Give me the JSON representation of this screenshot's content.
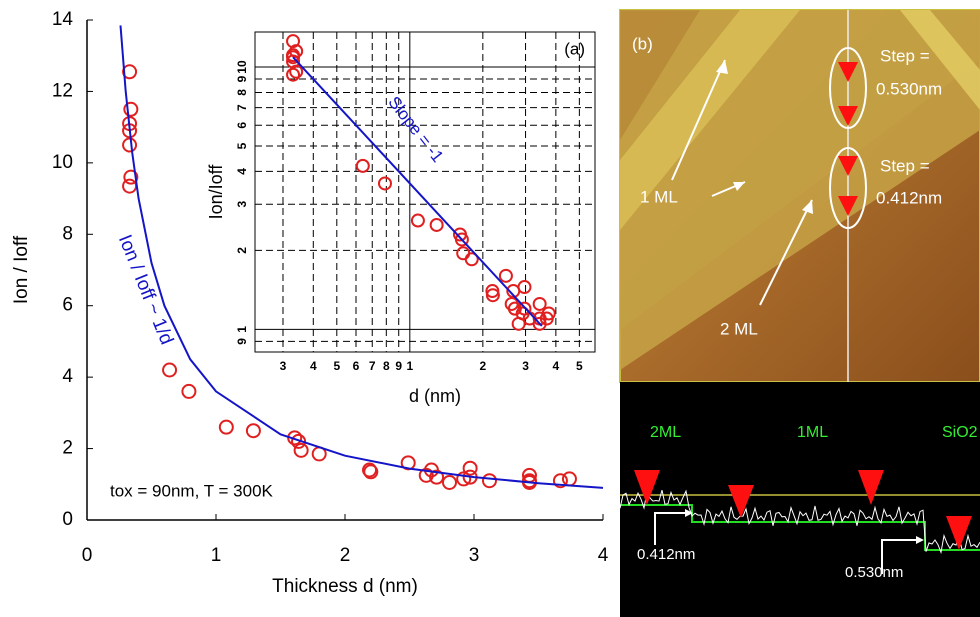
{
  "chart_data": [
    {
      "type": "scatter",
      "x_label": "Thickness d (nm)",
      "y_label": "Ion / Ioff",
      "annotations": [
        "tox = 90nm, T = 300K",
        "Ion / Ioff ~ 1/d"
      ],
      "xlim": [
        0,
        4
      ],
      "xticks": [
        0,
        1,
        2,
        3,
        4
      ],
      "ylim": [
        0,
        14
      ],
      "yticks": [
        0,
        2,
        4,
        6,
        8,
        10,
        12,
        14
      ],
      "series": [
        {
          "type": "scatter",
          "color": "#e02020",
          "x": [
            0.33,
            0.34,
            0.33,
            0.33,
            0.33,
            0.34,
            0.33,
            0.64,
            0.79,
            1.08,
            1.29,
            1.61,
            1.64,
            1.66,
            1.8,
            2.19,
            2.2,
            2.49,
            2.63,
            2.67,
            2.71,
            2.81,
            2.92,
            2.97,
            2.97,
            3.12,
            3.43,
            3.43,
            3.43,
            3.67,
            3.74
          ],
          "values": [
            12.55,
            11.5,
            11.1,
            10.9,
            10.5,
            9.6,
            9.35,
            4.2,
            3.6,
            2.6,
            2.5,
            2.3,
            2.2,
            1.95,
            1.85,
            1.4,
            1.35,
            1.6,
            1.25,
            1.4,
            1.2,
            1.05,
            1.15,
            1.45,
            1.2,
            1.1,
            1.25,
            1.1,
            1.05,
            1.1,
            1.15
          ]
        },
        {
          "type": "line",
          "color": "#1515c8",
          "x": [
            0.26,
            0.3,
            0.35,
            0.4,
            0.5,
            0.6,
            0.8,
            1,
            1.5,
            2,
            2.5,
            3,
            3.5,
            4
          ],
          "values": [
            13.85,
            12,
            10.29,
            9,
            7.2,
            6,
            4.5,
            3.6,
            2.4,
            1.8,
            1.44,
            1.2,
            1.03,
            0.9
          ]
        }
      ]
    },
    {
      "type": "scatter",
      "log": true,
      "panel_label": "(a)",
      "x_label": "d (nm)",
      "y_label": "Ion/Ioff",
      "annotations": [
        "Slope = -1"
      ],
      "xlim": [
        0.23,
        5.8
      ],
      "xticks": [
        {
          "value": 0.3,
          "label": "3"
        },
        {
          "value": 0.4,
          "label": "4"
        },
        {
          "value": 0.5,
          "label": "5"
        },
        {
          "value": 0.6,
          "label": "6"
        },
        {
          "value": 0.7,
          "label": "7"
        },
        {
          "value": 0.8,
          "label": "8"
        },
        {
          "value": 0.9,
          "label": "9"
        },
        1,
        2,
        3,
        4,
        5
      ],
      "ylim": [
        0.82,
        13.6
      ],
      "yticks": [
        {
          "value": 0.9,
          "label": "9"
        },
        1,
        2,
        3,
        4,
        5,
        6,
        7,
        8,
        9,
        10
      ],
      "series": [
        {
          "type": "scatter",
          "color": "#e02020",
          "x": [
            0.33,
            0.34,
            0.33,
            0.33,
            0.33,
            0.34,
            0.33,
            0.64,
            0.79,
            1.08,
            1.29,
            1.61,
            1.64,
            1.66,
            1.8,
            2.19,
            2.2,
            2.49,
            2.63,
            2.67,
            2.71,
            2.81,
            2.92,
            2.97,
            2.97,
            3.12,
            3.43,
            3.43,
            3.43,
            3.67,
            3.74
          ],
          "values": [
            12.55,
            11.5,
            11.1,
            10.9,
            10.5,
            9.6,
            9.35,
            4.2,
            3.6,
            2.6,
            2.5,
            2.3,
            2.2,
            1.95,
            1.85,
            1.4,
            1.35,
            1.6,
            1.25,
            1.4,
            1.2,
            1.05,
            1.15,
            1.45,
            1.2,
            1.1,
            1.25,
            1.1,
            1.05,
            1.1,
            1.15
          ]
        },
        {
          "type": "line",
          "color": "#1515c8",
          "x": [
            0.33,
            3.5
          ],
          "values": [
            10.9,
            1.03
          ]
        }
      ]
    }
  ],
  "afm": {
    "panel_label": "(b)",
    "steps": [
      {
        "label": "Step =",
        "height": "0.530nm"
      },
      {
        "label": "Step =",
        "height": "0.412nm"
      }
    ],
    "layer_labels": [
      "1 ML",
      "2 ML"
    ],
    "profile": {
      "region_labels": [
        "2ML",
        "1ML",
        "SiO2"
      ],
      "step_labels": [
        "0.412nm",
        "0.530nm"
      ]
    }
  }
}
